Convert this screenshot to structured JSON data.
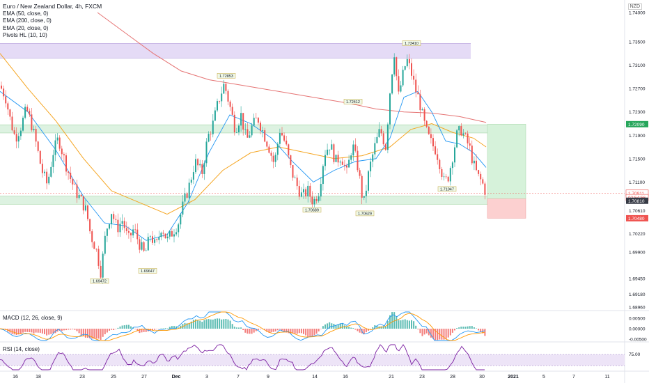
{
  "legend": {
    "title": "Euro / New Zealand Dollar, 4h, FXCM",
    "indicators": [
      "EMA (50, close, 0)",
      "EMA (200, close, 0)",
      "EMA (20, close, 0)",
      "Pivots HL (10, 10)"
    ]
  },
  "currency_badge": "NZD",
  "macd_label": "MACD (12, 26, close, 9)",
  "rsi_label": "RSI (14, close)",
  "colors": {
    "up": "#26a69a",
    "down": "#ef5350",
    "ema20": "#2196f3",
    "ema50": "#f5a623",
    "ema200": "#e57373",
    "zone_purple": "#e1d5f5",
    "zone_green": "#d7f0dc",
    "rsi": "#7b1fa2"
  },
  "chart_data": {
    "type": "candlestick",
    "y_ticks": [
      "1.74000",
      "1.73500",
      "1.73100",
      "1.72700",
      "1.72300",
      "1.71900",
      "1.71500",
      "1.71100",
      "1.70610",
      "1.70220",
      "1.69900",
      "1.69450",
      "1.69180",
      "1.68960"
    ],
    "x_ticks": [
      "16",
      "18",
      "23",
      "25",
      "27",
      "Dec",
      "3",
      "7",
      "9",
      "14",
      "16",
      "21",
      "23",
      "28",
      "30",
      "2021",
      "5",
      "7",
      "11"
    ],
    "price_labels": [
      {
        "text": "1.72090",
        "price": 1.7209,
        "style": "green"
      },
      {
        "text": "1.70911",
        "price": 1.70911,
        "style": "red-outline"
      },
      {
        "text": "02:54:56",
        "price": 1.70835,
        "style": "red-outline"
      },
      {
        "text": "1.70810",
        "price": 1.7078,
        "style": "dark"
      },
      {
        "text": "1.70480",
        "price": 1.7048,
        "style": "red"
      }
    ],
    "pivots": [
      {
        "text": "1.72853",
        "x": 325,
        "price": 1.72853,
        "pos": "above"
      },
      {
        "text": "1.72412",
        "x": 507,
        "price": 1.72412,
        "pos": "above"
      },
      {
        "text": "1.73410",
        "x": 591,
        "price": 1.7341,
        "pos": "above"
      },
      {
        "text": "1.69472",
        "x": 143,
        "price": 1.69472,
        "pos": "below"
      },
      {
        "text": "1.69647",
        "x": 212,
        "price": 1.69647,
        "pos": "below"
      },
      {
        "text": "1.70689",
        "x": 448,
        "price": 1.70689,
        "pos": "below"
      },
      {
        "text": "1.70629",
        "x": 524,
        "price": 1.70629,
        "pos": "below"
      },
      {
        "text": "1.71047",
        "x": 642,
        "price": 1.71047,
        "pos": "below"
      }
    ],
    "zones": [
      {
        "name": "resistance-zone",
        "price_top": 1.7347,
        "price_bottom": 1.7322,
        "x_end": 676
      },
      {
        "name": "mid-zone",
        "price_top": 1.7208,
        "price_bottom": 1.7194,
        "x_end": 700
      },
      {
        "name": "support-zone",
        "price_top": 1.7086,
        "price_bottom": 1.7072,
        "x_end": 700
      }
    ],
    "position": {
      "entry": 1.7081,
      "target": 1.7209,
      "stop": 1.7048
    },
    "macd_ticks": [
      "0.00500",
      "0.00000",
      "-0.00500"
    ],
    "rsi_ticks": [
      "75.00"
    ],
    "close_path": [
      [
        0,
        1.7275
      ],
      [
        8,
        1.7255
      ],
      [
        15,
        1.7215
      ],
      [
        22,
        1.7185
      ],
      [
        30,
        1.7205
      ],
      [
        38,
        1.7235
      ],
      [
        45,
        1.721
      ],
      [
        52,
        1.7175
      ],
      [
        60,
        1.713
      ],
      [
        68,
        1.7105
      ],
      [
        76,
        1.716
      ],
      [
        84,
        1.7185
      ],
      [
        92,
        1.715
      ],
      [
        100,
        1.712
      ],
      [
        108,
        1.7095
      ],
      [
        116,
        1.708
      ],
      [
        124,
        1.706
      ],
      [
        130,
        1.702
      ],
      [
        138,
        1.6995
      ],
      [
        145,
        1.6955
      ],
      [
        152,
        1.7025
      ],
      [
        160,
        1.706
      ],
      [
        168,
        1.703
      ],
      [
        176,
        1.7045
      ],
      [
        184,
        1.701
      ],
      [
        192,
        1.703
      ],
      [
        200,
        1.7005
      ],
      [
        208,
        1.6985
      ],
      [
        216,
        1.702
      ],
      [
        224,
        1.6998
      ],
      [
        232,
        1.7035
      ],
      [
        240,
        1.701
      ],
      [
        248,
        1.7025
      ],
      [
        256,
        1.704
      ],
      [
        264,
        1.7075
      ],
      [
        272,
        1.7105
      ],
      [
        280,
        1.7145
      ],
      [
        290,
        1.7125
      ],
      [
        298,
        1.7185
      ],
      [
        306,
        1.721
      ],
      [
        314,
        1.725
      ],
      [
        322,
        1.7278
      ],
      [
        330,
        1.724
      ],
      [
        338,
        1.72
      ],
      [
        346,
        1.7225
      ],
      [
        354,
        1.718
      ],
      [
        362,
        1.7205
      ],
      [
        370,
        1.722
      ],
      [
        378,
        1.7195
      ],
      [
        386,
        1.717
      ],
      [
        394,
        1.714
      ],
      [
        402,
        1.72
      ],
      [
        410,
        1.7175
      ],
      [
        418,
        1.713
      ],
      [
        426,
        1.7105
      ],
      [
        434,
        1.7085
      ],
      [
        442,
        1.7095
      ],
      [
        450,
        1.7075
      ],
      [
        458,
        1.7095
      ],
      [
        466,
        1.716
      ],
      [
        474,
        1.7175
      ],
      [
        482,
        1.7145
      ],
      [
        490,
        1.7155
      ],
      [
        498,
        1.7125
      ],
      [
        506,
        1.7175
      ],
      [
        514,
        1.7135
      ],
      [
        522,
        1.707
      ],
      [
        530,
        1.713
      ],
      [
        538,
        1.717
      ],
      [
        546,
        1.72
      ],
      [
        554,
        1.717
      ],
      [
        560,
        1.7265
      ],
      [
        566,
        1.7335
      ],
      [
        572,
        1.7255
      ],
      [
        578,
        1.729
      ],
      [
        584,
        1.732
      ],
      [
        590,
        1.73
      ],
      [
        596,
        1.727
      ],
      [
        602,
        1.725
      ],
      [
        608,
        1.7215
      ],
      [
        614,
        1.719
      ],
      [
        620,
        1.7175
      ],
      [
        626,
        1.7165
      ],
      [
        632,
        1.714
      ],
      [
        638,
        1.7108
      ],
      [
        644,
        1.712
      ],
      [
        650,
        1.7155
      ],
      [
        656,
        1.719
      ],
      [
        662,
        1.72
      ],
      [
        668,
        1.7185
      ],
      [
        674,
        1.717
      ],
      [
        680,
        1.714
      ],
      [
        686,
        1.712
      ],
      [
        692,
        1.711
      ],
      [
        698,
        1.7091
      ]
    ],
    "ema20": [
      [
        0,
        1.7265
      ],
      [
        40,
        1.723
      ],
      [
        80,
        1.7165
      ],
      [
        120,
        1.7085
      ],
      [
        150,
        1.704
      ],
      [
        180,
        1.7035
      ],
      [
        210,
        1.701
      ],
      [
        240,
        1.702
      ],
      [
        270,
        1.7075
      ],
      [
        300,
        1.716
      ],
      [
        330,
        1.7225
      ],
      [
        360,
        1.721
      ],
      [
        390,
        1.7185
      ],
      [
        420,
        1.7145
      ],
      [
        450,
        1.711
      ],
      [
        480,
        1.713
      ],
      [
        510,
        1.7145
      ],
      [
        540,
        1.715
      ],
      [
        560,
        1.7185
      ],
      [
        580,
        1.7255
      ],
      [
        600,
        1.7265
      ],
      [
        620,
        1.723
      ],
      [
        640,
        1.718
      ],
      [
        660,
        1.7175
      ],
      [
        680,
        1.716
      ],
      [
        698,
        1.7135
      ]
    ],
    "ema50": [
      [
        0,
        1.733
      ],
      [
        40,
        1.727
      ],
      [
        80,
        1.7215
      ],
      [
        120,
        1.715
      ],
      [
        160,
        1.7095
      ],
      [
        200,
        1.7075
      ],
      [
        240,
        1.7055
      ],
      [
        280,
        1.708
      ],
      [
        320,
        1.713
      ],
      [
        360,
        1.716
      ],
      [
        400,
        1.717
      ],
      [
        440,
        1.716
      ],
      [
        480,
        1.715
      ],
      [
        520,
        1.7155
      ],
      [
        560,
        1.717
      ],
      [
        590,
        1.72
      ],
      [
        620,
        1.721
      ],
      [
        650,
        1.7195
      ],
      [
        680,
        1.7185
      ],
      [
        698,
        1.717
      ]
    ],
    "ema200": [
      [
        140,
        1.74
      ],
      [
        180,
        1.7365
      ],
      [
        220,
        1.733
      ],
      [
        260,
        1.73
      ],
      [
        300,
        1.7285
      ],
      [
        350,
        1.7275
      ],
      [
        400,
        1.7265
      ],
      [
        450,
        1.7255
      ],
      [
        500,
        1.7245
      ],
      [
        540,
        1.7235
      ],
      [
        580,
        1.723
      ],
      [
        620,
        1.7228
      ],
      [
        660,
        1.7222
      ],
      [
        698,
        1.7212
      ]
    ]
  }
}
